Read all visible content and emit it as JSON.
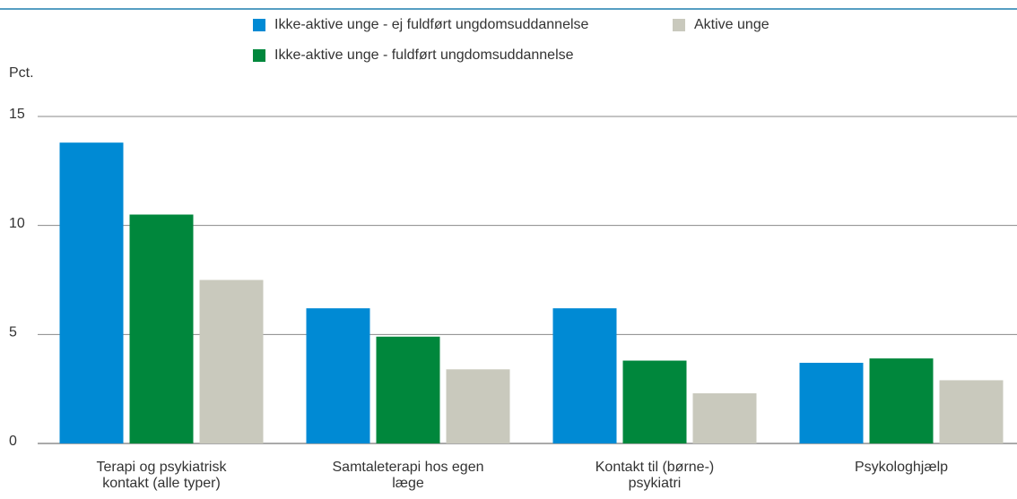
{
  "chart_data": {
    "type": "bar",
    "y_label": "Pct.",
    "categories": [
      [
        "Terapi og psykiatrisk",
        "kontakt (alle typer)"
      ],
      [
        "Samtaleterapi hos egen",
        "læge"
      ],
      [
        "Kontakt til (børne-)",
        "psykiatri"
      ],
      [
        "Psykologhjælp"
      ]
    ],
    "series": [
      {
        "name": "Ikke-aktive unge - ej fuldført ungdomsuddannelse",
        "color": "#008ad4",
        "values": [
          13.8,
          6.2,
          6.2,
          3.7
        ]
      },
      {
        "name": "Ikke-aktive unge - fuldført ungdomsuddannelse",
        "color": "#00873c",
        "values": [
          10.5,
          4.9,
          3.8,
          3.9
        ]
      },
      {
        "name": "Aktive unge",
        "color": "#c9c9bd",
        "values": [
          7.5,
          3.4,
          2.3,
          2.9
        ]
      }
    ],
    "ylim": [
      0,
      15
    ],
    "yticks": [
      0,
      5,
      10,
      15
    ],
    "grid": true
  }
}
